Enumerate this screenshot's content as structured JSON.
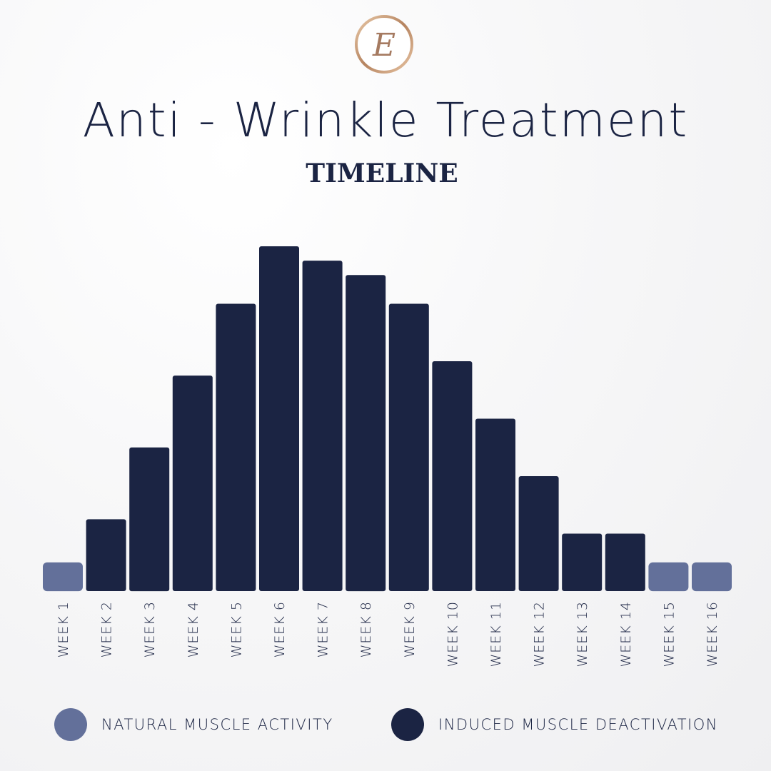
{
  "logo": {
    "letter": "E"
  },
  "header": {
    "title": "Anti - Wrinkle Treatment",
    "subtitle": "TIMELINE"
  },
  "legend": {
    "natural": {
      "label": "NATURAL MUSCLE ACTIVITY",
      "color": "#63709a"
    },
    "induced": {
      "label": "INDUCED MUSCLE DEACTIVATION",
      "color": "#1b2443"
    }
  },
  "chart_data": {
    "type": "bar",
    "title": "Anti - Wrinkle Treatment",
    "subtitle": "TIMELINE",
    "categories": [
      "WEEK 1",
      "WEEK 2",
      "WEEK 3",
      "WEEK 4",
      "WEEK 5",
      "WEEK 6",
      "WEEK 7",
      "WEEK 8",
      "WEEK 9",
      "WEEK 10",
      "WEEK 11",
      "WEEK 12",
      "WEEK 13",
      "WEEK 14",
      "WEEK 15",
      "WEEK 16"
    ],
    "values": [
      1,
      2.5,
      5,
      7.5,
      10,
      12,
      11.5,
      11,
      10,
      8,
      6,
      4,
      2,
      2,
      1,
      1
    ],
    "series_type": [
      "natural",
      "induced",
      "induced",
      "induced",
      "induced",
      "induced",
      "induced",
      "induced",
      "induced",
      "induced",
      "induced",
      "induced",
      "induced",
      "induced",
      "natural",
      "natural"
    ],
    "ylim": [
      0,
      12
    ],
    "grid": false,
    "legend_position": "bottom",
    "xlabel": "",
    "ylabel": ""
  }
}
